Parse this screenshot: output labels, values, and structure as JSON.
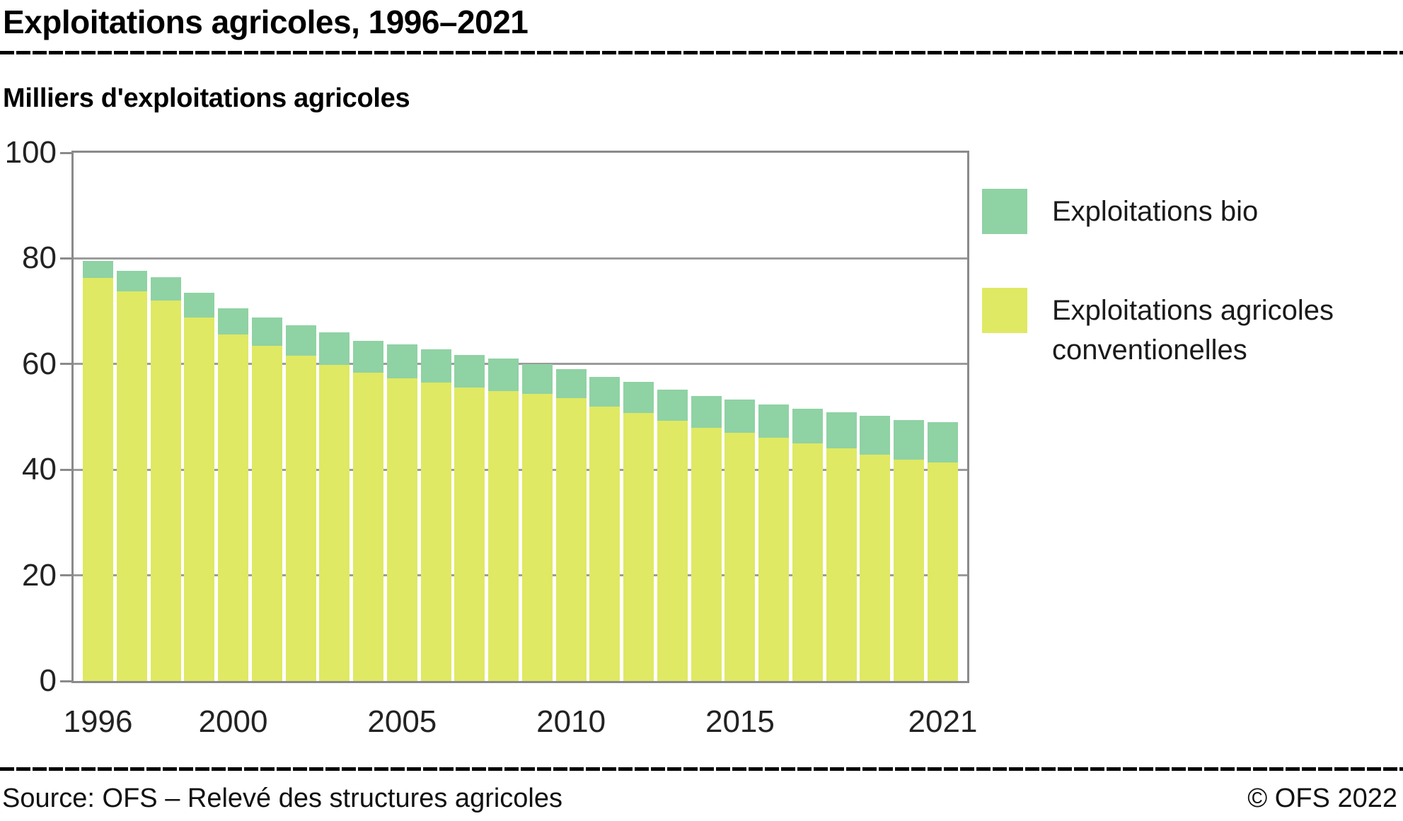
{
  "header": {
    "title": "Exploitations agricoles, 1996–2021",
    "subtitle": "Milliers d'exploitations agricoles"
  },
  "legend": [
    {
      "label": "Exploitations bio",
      "color": "#8fd2a4"
    },
    {
      "label": "Exploitations agricoles conventionelles",
      "color": "#dfe963"
    }
  ],
  "footer": {
    "source": "Source: OFS – Relevé des structures agricoles",
    "copyright": "© OFS 2022"
  },
  "chart_data": {
    "type": "bar",
    "stacked": true,
    "title": "Exploitations agricoles, 1996–2021",
    "ylabel": "Milliers d'exploitations agricoles",
    "xlabel": "",
    "ylim": [
      0,
      100
    ],
    "yticks": [
      0,
      20,
      40,
      60,
      80,
      100
    ],
    "grid": true,
    "legend_position": "right",
    "categories": [
      1996,
      1997,
      1998,
      1999,
      2000,
      2001,
      2002,
      2003,
      2004,
      2005,
      2006,
      2007,
      2008,
      2009,
      2010,
      2011,
      2012,
      2013,
      2014,
      2015,
      2016,
      2017,
      2018,
      2019,
      2020,
      2021
    ],
    "xtick_labels": [
      1996,
      2000,
      2005,
      2010,
      2015,
      2021
    ],
    "series": [
      {
        "name": "Exploitations agricoles conventionelles",
        "color": "#dfe963",
        "values": [
          76.3,
          73.8,
          72.0,
          68.8,
          65.6,
          63.5,
          61.6,
          59.9,
          58.4,
          57.3,
          56.5,
          55.5,
          54.9,
          54.3,
          53.5,
          52.0,
          50.8,
          49.3,
          47.9,
          47.0,
          46.0,
          45.0,
          44.0,
          42.9,
          41.9,
          41.4
        ]
      },
      {
        "name": "Exploitations bio",
        "color": "#8fd2a4",
        "values": [
          3.2,
          3.9,
          4.4,
          4.7,
          5.0,
          5.3,
          5.8,
          6.1,
          6.0,
          6.4,
          6.3,
          6.2,
          6.1,
          5.7,
          5.5,
          5.6,
          5.8,
          5.9,
          6.1,
          6.3,
          6.3,
          6.6,
          6.9,
          7.3,
          7.5,
          7.6
        ]
      }
    ],
    "colors": {
      "gridline": "#9b9b9b",
      "plot_border": "#8a8a8a"
    }
  }
}
